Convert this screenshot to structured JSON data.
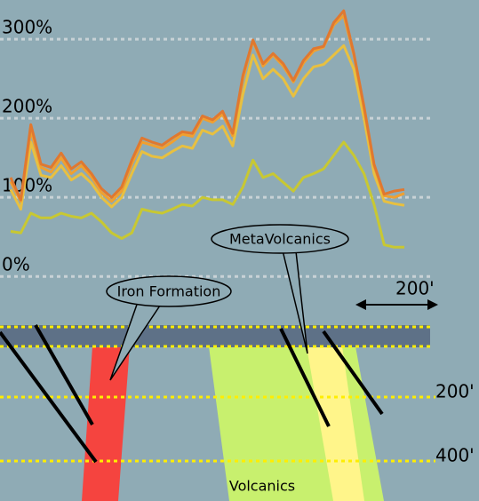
{
  "chart_data": {
    "type": "line",
    "ylim": [
      -20,
      335
    ],
    "yticks": [
      {
        "value": 0,
        "label": "0%"
      },
      {
        "value": 100,
        "label": "100%"
      },
      {
        "value": 200,
        "label": "200%"
      },
      {
        "value": 300,
        "label": "300%"
      }
    ],
    "grid": true,
    "series": [
      {
        "color": "#c8c832",
        "values": [
          57,
          55,
          80,
          74,
          74,
          80,
          76,
          74,
          80,
          69,
          55,
          48,
          55,
          85,
          82,
          80,
          85,
          91,
          89,
          100,
          97,
          97,
          91,
          113,
          147,
          125,
          130,
          119,
          108,
          125,
          130,
          136,
          153,
          170,
          153,
          130,
          91,
          40,
          37,
          37
        ]
      },
      {
        "color": "#e8c040",
        "values": [
          110,
          85,
          170,
          128,
          125,
          140,
          122,
          130,
          118,
          100,
          88,
          100,
          130,
          158,
          152,
          150,
          158,
          165,
          162,
          185,
          180,
          190,
          165,
          230,
          280,
          250,
          262,
          250,
          228,
          250,
          265,
          268,
          280,
          292,
          262,
          200,
          130,
          95,
          92,
          90
        ]
      },
      {
        "color": "#f0a030",
        "values": [
          120,
          95,
          185,
          138,
          132,
          150,
          130,
          140,
          126,
          106,
          95,
          108,
          142,
          170,
          166,
          162,
          170,
          180,
          177,
          200,
          195,
          205,
          178,
          250,
          298,
          266,
          280,
          266,
          246,
          270,
          285,
          290,
          318,
          330,
          280,
          212,
          140,
          102,
          100,
          105
        ]
      },
      {
        "color": "#e07830",
        "values": [
          125,
          97,
          192,
          142,
          138,
          156,
          136,
          145,
          130,
          111,
          100,
          113,
          147,
          175,
          170,
          166,
          175,
          183,
          181,
          203,
          198,
          209,
          181,
          254,
          299,
          269,
          282,
          269,
          248,
          273,
          288,
          291,
          321,
          336,
          282,
          215,
          142,
          104,
          108,
          110
        ]
      }
    ]
  },
  "diagram": {
    "callouts": [
      "Iron Formation",
      "MetaVolcanics"
    ],
    "scale_label": "200'",
    "depth_labels": [
      "200'",
      "400'"
    ],
    "unit_label": "Volcanics"
  }
}
